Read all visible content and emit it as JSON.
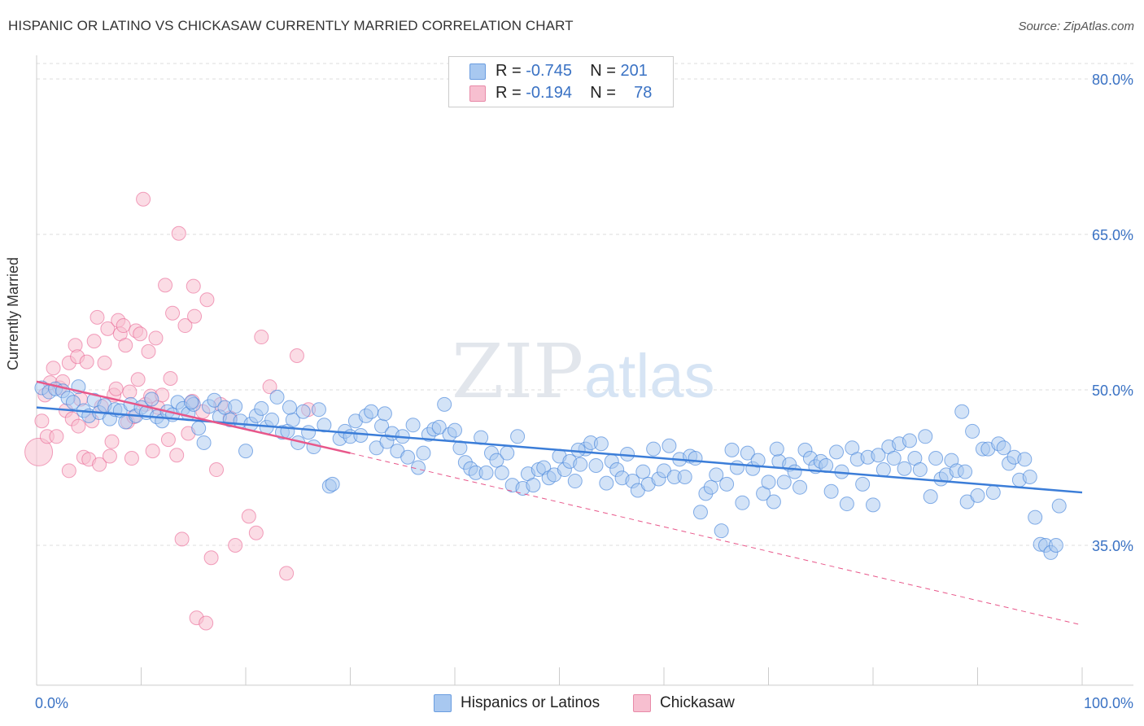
{
  "title": "HISPANIC OR LATINO VS CHICKASAW CURRENTLY MARRIED CORRELATION CHART",
  "source": "Source: ZipAtlas.com",
  "watermark": {
    "zip": "ZIP",
    "atlas": "atlas"
  },
  "legend": {
    "rows": [
      {
        "r_label": "R = ",
        "r_value": "-0.745",
        "n_label": "N = ",
        "n_value": "201",
        "color": "#a8c8f0",
        "border": "#6a9de0"
      },
      {
        "r_label": "R = ",
        "r_value": "-0.194",
        "n_label": "N = ",
        "n_value": "78",
        "color": "#f7bfd0",
        "border": "#e88aa8"
      }
    ]
  },
  "bottom_legend": [
    {
      "label": "Hispanics or Latinos",
      "color": "#a8c8f0",
      "border": "#6a9de0"
    },
    {
      "label": "Chickasaw",
      "color": "#f7bfd0",
      "border": "#e88aa8"
    }
  ],
  "chart_data": {
    "type": "scatter",
    "title": "HISPANIC OR LATINO VS CHICKASAW CURRENTLY MARRIED CORRELATION CHART",
    "xlabel": "",
    "ylabel": "Currently Married",
    "xlim": [
      0,
      100
    ],
    "ylim": [
      21.5,
      83.5
    ],
    "x_ticks": [
      "0.0%",
      "100.0%"
    ],
    "y_ticks": [
      {
        "value": 80,
        "label": "80.0%"
      },
      {
        "value": 65,
        "label": "65.0%"
      },
      {
        "value": 50,
        "label": "50.0%"
      },
      {
        "value": 35,
        "label": "35.0%"
      }
    ],
    "grid": true,
    "legend_position": "top-center",
    "colors": {
      "blue": "#3b7dd8",
      "blue_fill": "#a8c8f0",
      "pink": "#e8578a",
      "pink_fill": "#f7bfd0",
      "tick_label": "#3a72c4"
    },
    "series": [
      {
        "name": "Hispanics or Latinos",
        "trend": {
          "x": [
            0,
            100
          ],
          "y": [
            48.3,
            40.1
          ]
        },
        "points": [
          [
            0.5,
            50.2
          ],
          [
            1.2,
            49.8
          ],
          [
            1.8,
            50.1
          ],
          [
            2.5,
            49.9
          ],
          [
            3,
            49.2
          ],
          [
            3.5,
            48.8
          ],
          [
            4,
            50.3
          ],
          [
            4.5,
            48.0
          ],
          [
            5,
            47.5
          ],
          [
            5.5,
            49.0
          ],
          [
            6,
            47.8
          ],
          [
            6.5,
            48.5
          ],
          [
            7,
            47.2
          ],
          [
            7.5,
            48.1
          ],
          [
            8,
            48.0
          ],
          [
            8.5,
            46.9
          ],
          [
            9,
            48.6
          ],
          [
            9.5,
            47.5
          ],
          [
            10,
            48.3
          ],
          [
            10.5,
            47.8
          ],
          [
            11,
            49.1
          ],
          [
            11.5,
            47.4
          ],
          [
            12,
            47.0
          ],
          [
            12.5,
            47.9
          ],
          [
            13,
            47.6
          ],
          [
            13.5,
            48.8
          ],
          [
            14,
            48.2
          ],
          [
            14.5,
            47.7
          ],
          [
            15,
            48.6
          ],
          [
            15.5,
            46.3
          ],
          [
            16,
            44.9
          ],
          [
            16.5,
            48.4
          ],
          [
            17,
            49.0
          ],
          [
            17.5,
            47.4
          ],
          [
            18,
            48.3
          ],
          [
            18.5,
            47.1
          ],
          [
            19,
            48.4
          ],
          [
            19.5,
            47.0
          ],
          [
            20,
            44.1
          ],
          [
            20.5,
            46.7
          ],
          [
            21,
            47.5
          ],
          [
            21.5,
            48.2
          ],
          [
            22,
            46.4
          ],
          [
            22.5,
            47.1
          ],
          [
            23,
            49.3
          ],
          [
            23.5,
            45.9
          ],
          [
            24,
            46.0
          ],
          [
            24.5,
            47.1
          ],
          [
            25,
            44.9
          ],
          [
            25.5,
            47.9
          ],
          [
            26,
            45.9
          ],
          [
            26.5,
            44.5
          ],
          [
            27,
            48.1
          ],
          [
            27.5,
            46.6
          ],
          [
            28,
            40.7
          ],
          [
            28.3,
            40.9
          ],
          [
            29,
            45.3
          ],
          [
            29.5,
            46.0
          ],
          [
            30,
            45.5
          ],
          [
            30.5,
            47.0
          ],
          [
            31,
            45.6
          ],
          [
            31.5,
            47.5
          ],
          [
            32,
            47.9
          ],
          [
            32.5,
            44.4
          ],
          [
            33,
            46.5
          ],
          [
            33.5,
            45.0
          ],
          [
            34,
            45.8
          ],
          [
            34.5,
            44.1
          ],
          [
            35,
            45.5
          ],
          [
            35.5,
            43.5
          ],
          [
            36,
            46.6
          ],
          [
            36.5,
            42.5
          ],
          [
            37,
            43.9
          ],
          [
            37.5,
            45.7
          ],
          [
            38,
            46.2
          ],
          [
            38.5,
            46.4
          ],
          [
            39,
            48.6
          ],
          [
            39.5,
            45.7
          ],
          [
            40,
            46.1
          ],
          [
            40.5,
            44.4
          ],
          [
            41,
            43.0
          ],
          [
            41.5,
            42.4
          ],
          [
            42,
            42.0
          ],
          [
            42.5,
            45.4
          ],
          [
            43,
            42.0
          ],
          [
            43.5,
            43.9
          ],
          [
            44,
            43.2
          ],
          [
            44.5,
            42.0
          ],
          [
            45,
            43.9
          ],
          [
            45.5,
            40.8
          ],
          [
            46,
            45.5
          ],
          [
            46.5,
            40.5
          ],
          [
            47,
            41.9
          ],
          [
            47.5,
            40.8
          ],
          [
            48,
            42.3
          ],
          [
            48.5,
            42.5
          ],
          [
            49,
            41.5
          ],
          [
            49.5,
            41.8
          ],
          [
            50,
            43.6
          ],
          [
            50.5,
            42.3
          ],
          [
            51,
            43.1
          ],
          [
            51.5,
            41.2
          ],
          [
            52,
            42.8
          ],
          [
            52.5,
            44.3
          ],
          [
            53,
            44.9
          ],
          [
            53.5,
            42.7
          ],
          [
            54,
            44.8
          ],
          [
            54.5,
            41.0
          ],
          [
            55,
            43.1
          ],
          [
            55.5,
            42.3
          ],
          [
            56,
            41.5
          ],
          [
            56.5,
            43.8
          ],
          [
            57,
            41.2
          ],
          [
            57.5,
            40.3
          ],
          [
            58,
            42.1
          ],
          [
            58.5,
            40.9
          ],
          [
            59,
            44.3
          ],
          [
            59.5,
            41.4
          ],
          [
            60,
            42.2
          ],
          [
            60.5,
            44.6
          ],
          [
            61,
            41.6
          ],
          [
            61.5,
            43.3
          ],
          [
            62,
            41.6
          ],
          [
            62.5,
            43.6
          ],
          [
            63,
            43.4
          ],
          [
            63.5,
            38.2
          ],
          [
            64,
            40.0
          ],
          [
            64.5,
            40.6
          ],
          [
            65,
            41.8
          ],
          [
            65.5,
            36.4
          ],
          [
            66,
            40.9
          ],
          [
            66.5,
            44.2
          ],
          [
            67,
            42.5
          ],
          [
            67.5,
            39.1
          ],
          [
            68,
            43.9
          ],
          [
            68.5,
            42.4
          ],
          [
            69,
            43.2
          ],
          [
            69.5,
            40.0
          ],
          [
            70,
            41.1
          ],
          [
            70.5,
            39.2
          ],
          [
            71,
            43.1
          ],
          [
            71.5,
            41.1
          ],
          [
            72,
            42.8
          ],
          [
            72.5,
            42.1
          ],
          [
            73,
            40.6
          ],
          [
            73.5,
            44.2
          ],
          [
            74,
            43.4
          ],
          [
            74.5,
            42.6
          ],
          [
            75,
            43.1
          ],
          [
            75.5,
            42.7
          ],
          [
            76,
            40.2
          ],
          [
            76.5,
            44.0
          ],
          [
            77,
            42.1
          ],
          [
            77.5,
            39.0
          ],
          [
            78,
            44.4
          ],
          [
            78.5,
            43.3
          ],
          [
            79,
            40.9
          ],
          [
            79.5,
            43.5
          ],
          [
            80,
            38.9
          ],
          [
            80.5,
            43.7
          ],
          [
            81,
            42.3
          ],
          [
            81.5,
            44.5
          ],
          [
            82,
            43.4
          ],
          [
            82.5,
            44.8
          ],
          [
            83,
            42.4
          ],
          [
            83.5,
            45.1
          ],
          [
            84,
            43.4
          ],
          [
            84.5,
            42.3
          ],
          [
            85,
            45.5
          ],
          [
            85.5,
            39.7
          ],
          [
            86,
            43.4
          ],
          [
            86.5,
            41.4
          ],
          [
            87,
            41.8
          ],
          [
            87.5,
            43.2
          ],
          [
            88,
            42.2
          ],
          [
            88.5,
            47.9
          ],
          [
            89,
            39.2
          ],
          [
            89.5,
            46.0
          ],
          [
            90,
            39.8
          ],
          [
            90.5,
            44.3
          ],
          [
            91,
            44.3
          ],
          [
            91.5,
            40.1
          ],
          [
            92,
            44.8
          ],
          [
            92.5,
            44.4
          ],
          [
            93,
            42.9
          ],
          [
            93.5,
            43.5
          ],
          [
            94,
            41.3
          ],
          [
            94.5,
            43.3
          ],
          [
            95,
            41.6
          ],
          [
            95.5,
            37.7
          ],
          [
            96,
            35.1
          ],
          [
            96.5,
            35.0
          ],
          [
            97,
            34.3
          ],
          [
            97.5,
            35.0
          ],
          [
            97.8,
            38.8
          ],
          [
            14.8,
            48.8
          ],
          [
            33.3,
            47.7
          ],
          [
            51.8,
            44.2
          ],
          [
            70.8,
            44.3
          ],
          [
            88.8,
            42.1
          ],
          [
            24.2,
            48.3
          ]
        ]
      },
      {
        "name": "Chickasaw",
        "trend": {
          "x": [
            0,
            30
          ],
          "y": [
            50.8,
            43.9
          ]
        },
        "trend_extended": {
          "x": [
            30,
            100
          ],
          "y": [
            43.9,
            27.3
          ]
        },
        "points": [
          [
            0.2,
            44.0
          ],
          [
            0.5,
            47.0
          ],
          [
            0.8,
            49.5
          ],
          [
            1,
            45.5
          ],
          [
            1.3,
            50.7
          ],
          [
            1.6,
            52.1
          ],
          [
            1.9,
            45.5
          ],
          [
            2.2,
            50.2
          ],
          [
            2.5,
            50.8
          ],
          [
            2.8,
            48.0
          ],
          [
            3.1,
            52.6
          ],
          [
            3.1,
            42.2
          ],
          [
            3.4,
            47.2
          ],
          [
            3.7,
            54.3
          ],
          [
            3.9,
            53.2
          ],
          [
            4.0,
            46.5
          ],
          [
            4.2,
            49.1
          ],
          [
            4.5,
            43.5
          ],
          [
            4.8,
            52.7
          ],
          [
            5.0,
            43.3
          ],
          [
            5.3,
            47.0
          ],
          [
            5.5,
            54.7
          ],
          [
            5.8,
            57.0
          ],
          [
            6.0,
            42.8
          ],
          [
            6.2,
            48.4
          ],
          [
            6.5,
            52.6
          ],
          [
            6.8,
            55.9
          ],
          [
            7.0,
            43.6
          ],
          [
            7.2,
            45.0
          ],
          [
            7.4,
            49.5
          ],
          [
            7.6,
            50.1
          ],
          [
            7.8,
            56.7
          ],
          [
            8.0,
            55.4
          ],
          [
            8.3,
            56.2
          ],
          [
            8.5,
            54.3
          ],
          [
            8.7,
            46.9
          ],
          [
            8.9,
            49.8
          ],
          [
            9.1,
            43.4
          ],
          [
            9.3,
            47.4
          ],
          [
            9.5,
            55.7
          ],
          [
            9.7,
            51.0
          ],
          [
            9.9,
            55.4
          ],
          [
            10.2,
            68.4
          ],
          [
            10.4,
            48.6
          ],
          [
            10.7,
            53.7
          ],
          [
            10.9,
            49.4
          ],
          [
            11.1,
            44.1
          ],
          [
            11.4,
            55.0
          ],
          [
            11.6,
            48.3
          ],
          [
            12.0,
            49.5
          ],
          [
            12.3,
            60.1
          ],
          [
            12.6,
            45.2
          ],
          [
            12.8,
            51.1
          ],
          [
            13.0,
            57.4
          ],
          [
            13.4,
            43.7
          ],
          [
            13.6,
            65.1
          ],
          [
            13.9,
            35.6
          ],
          [
            14.2,
            56.2
          ],
          [
            14.5,
            45.8
          ],
          [
            14.9,
            48.9
          ],
          [
            15.1,
            57.1
          ],
          [
            15.3,
            28.0
          ],
          [
            15.9,
            47.9
          ],
          [
            16.2,
            27.5
          ],
          [
            16.7,
            33.8
          ],
          [
            17.2,
            42.3
          ],
          [
            17.6,
            48.6
          ],
          [
            18.5,
            47.3
          ],
          [
            19.0,
            35.0
          ],
          [
            20.3,
            37.8
          ],
          [
            21.0,
            36.2
          ],
          [
            21.5,
            55.1
          ],
          [
            22.3,
            50.3
          ],
          [
            23.9,
            32.3
          ],
          [
            24.9,
            53.3
          ],
          [
            26.0,
            48.1
          ],
          [
            15.0,
            60.0
          ],
          [
            16.3,
            58.7
          ]
        ]
      }
    ]
  }
}
